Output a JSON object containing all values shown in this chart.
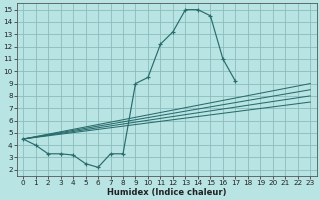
{
  "xlabel": "Humidex (Indice chaleur)",
  "bg_color": "#b8e4e4",
  "grid_color": "#8bbcbc",
  "line_color": "#2a6b6b",
  "xlim": [
    -0.5,
    23.5
  ],
  "ylim": [
    1.5,
    15.5
  ],
  "xticks": [
    0,
    1,
    2,
    3,
    4,
    5,
    6,
    7,
    8,
    9,
    10,
    11,
    12,
    13,
    14,
    15,
    16,
    17,
    18,
    19,
    20,
    21,
    22,
    23
  ],
  "yticks": [
    2,
    3,
    4,
    5,
    6,
    7,
    8,
    9,
    10,
    11,
    12,
    13,
    14,
    15
  ],
  "main_curve": {
    "x": [
      0,
      1,
      2,
      3,
      4,
      5,
      6,
      7,
      8,
      9,
      10,
      11,
      12,
      13,
      14,
      15,
      16,
      17
    ],
    "y": [
      4.5,
      4.0,
      3.3,
      3.3,
      3.2,
      2.5,
      2.2,
      3.3,
      3.3,
      9.0,
      9.5,
      12.2,
      13.2,
      15.0,
      15.0,
      14.5,
      11.0,
      9.2
    ]
  },
  "linear_lines": [
    {
      "x": [
        0,
        23
      ],
      "y": [
        4.5,
        9.0
      ]
    },
    {
      "x": [
        0,
        23
      ],
      "y": [
        4.5,
        8.5
      ]
    },
    {
      "x": [
        0,
        23
      ],
      "y": [
        4.5,
        8.0
      ]
    },
    {
      "x": [
        0,
        23
      ],
      "y": [
        4.5,
        7.5
      ]
    }
  ],
  "xlabel_fontsize": 6.0,
  "tick_fontsize": 5.2
}
